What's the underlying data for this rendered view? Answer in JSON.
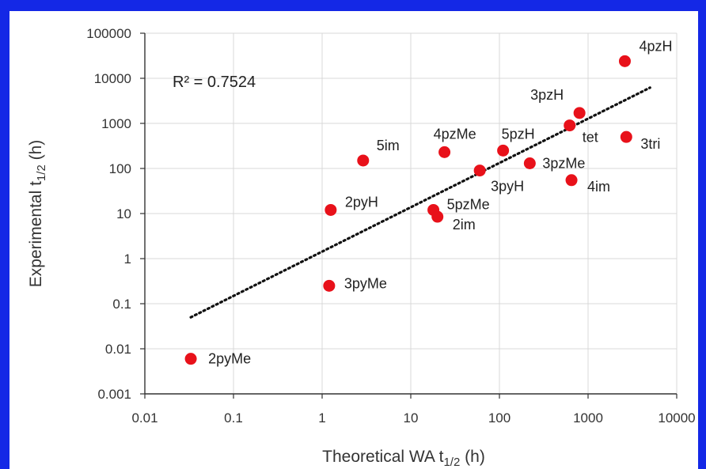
{
  "chart_data": {
    "type": "scatter",
    "title": "",
    "xlabel": "Theoretical WA t",
    "xlabel_sub": "1/2",
    "xlabel_suffix": " (h)",
    "ylabel": "Experimental t",
    "ylabel_sub": "1/2",
    "ylabel_suffix": " (h)",
    "x_scale": "log",
    "y_scale": "log",
    "xlim": [
      0.01,
      10000
    ],
    "ylim": [
      0.001,
      100000
    ],
    "grid": true,
    "x_ticks": [
      "0.01",
      "0.1",
      "1",
      "10",
      "100",
      "1000",
      "10000"
    ],
    "y_ticks": [
      "0.001",
      "0.01",
      "0.1",
      "1",
      "10",
      "100",
      "1000",
      "10000",
      "100000"
    ],
    "annotation": "R² = 0.7524",
    "trendline": {
      "style": "dotted",
      "points": [
        [
          0.033,
          0.05
        ],
        [
          5000,
          6200
        ]
      ]
    },
    "marker_color": "#e8111a",
    "frame_color": "#1428e6",
    "points": [
      {
        "label": "4pzH",
        "x": 2600,
        "y": 24000
      },
      {
        "label": "3pzH",
        "x": 800,
        "y": 1700
      },
      {
        "label": "tet",
        "x": 620,
        "y": 900
      },
      {
        "label": "3tri",
        "x": 2700,
        "y": 500
      },
      {
        "label": "5im",
        "x": 2.9,
        "y": 150
      },
      {
        "label": "4pzMe",
        "x": 24,
        "y": 230
      },
      {
        "label": "5pzH",
        "x": 110,
        "y": 250
      },
      {
        "label": "3pzMe",
        "x": 220,
        "y": 130
      },
      {
        "label": "3pyH",
        "x": 60,
        "y": 90
      },
      {
        "label": "4im",
        "x": 650,
        "y": 55
      },
      {
        "label": "2pyH",
        "x": 1.25,
        "y": 12
      },
      {
        "label": "5pzMe",
        "x": 18,
        "y": 12
      },
      {
        "label": "2im",
        "x": 20,
        "y": 8.5
      },
      {
        "label": "3pyMe",
        "x": 1.2,
        "y": 0.25
      },
      {
        "label": "2pyMe",
        "x": 0.033,
        "y": 0.006
      }
    ]
  }
}
